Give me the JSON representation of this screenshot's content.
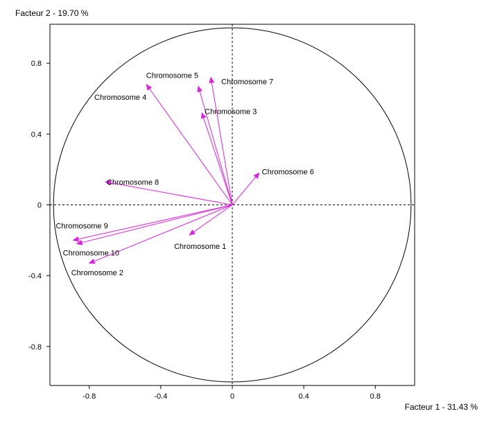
{
  "chart_data": {
    "type": "scatter",
    "subtype": "pca-correlation-circle",
    "x_axis_title": "Facteur 1  -  31.43 %",
    "y_axis_title": "Facteur 2  -  19.70 %",
    "xlim": [
      -1.02,
      1.02
    ],
    "ylim": [
      -1.02,
      1.02
    ],
    "x_ticks": [
      {
        "value": -0.8,
        "label": "-0.8"
      },
      {
        "value": -0.4,
        "label": "-0.4"
      },
      {
        "value": 0,
        "label": "0"
      },
      {
        "value": 0.4,
        "label": "0.4"
      },
      {
        "value": 0.8,
        "label": "0.8"
      }
    ],
    "y_ticks": [
      {
        "value": 0.8,
        "label": "0.8"
      },
      {
        "value": 0.4,
        "label": "0.4"
      },
      {
        "value": 0,
        "label": "0"
      },
      {
        "value": -0.4,
        "label": "-0.4"
      },
      {
        "value": -0.8,
        "label": "-0.8"
      }
    ],
    "unit_circle": true,
    "zero_lines": "dashed",
    "arrow_color": "#e020e0",
    "circle_color": "#000000",
    "variables": [
      {
        "name": "Chromosome 1",
        "x": -0.24,
        "y": -0.17
      },
      {
        "name": "Chromosome 2",
        "x": -0.8,
        "y": -0.33
      },
      {
        "name": "Chromosome 3",
        "x": -0.17,
        "y": 0.52
      },
      {
        "name": "Chromosome 4",
        "x": -0.48,
        "y": 0.68
      },
      {
        "name": "Chromosome 5",
        "x": -0.19,
        "y": 0.67
      },
      {
        "name": "Chromosome 6",
        "x": 0.15,
        "y": 0.18
      },
      {
        "name": "Chromosome 7",
        "x": -0.12,
        "y": 0.72
      },
      {
        "name": "Chromosome 8",
        "x": -0.71,
        "y": 0.13
      },
      {
        "name": "Chromosome 9",
        "x": -0.89,
        "y": -0.2
      },
      {
        "name": "Chromosome 10",
        "x": -0.87,
        "y": -0.22
      }
    ]
  }
}
